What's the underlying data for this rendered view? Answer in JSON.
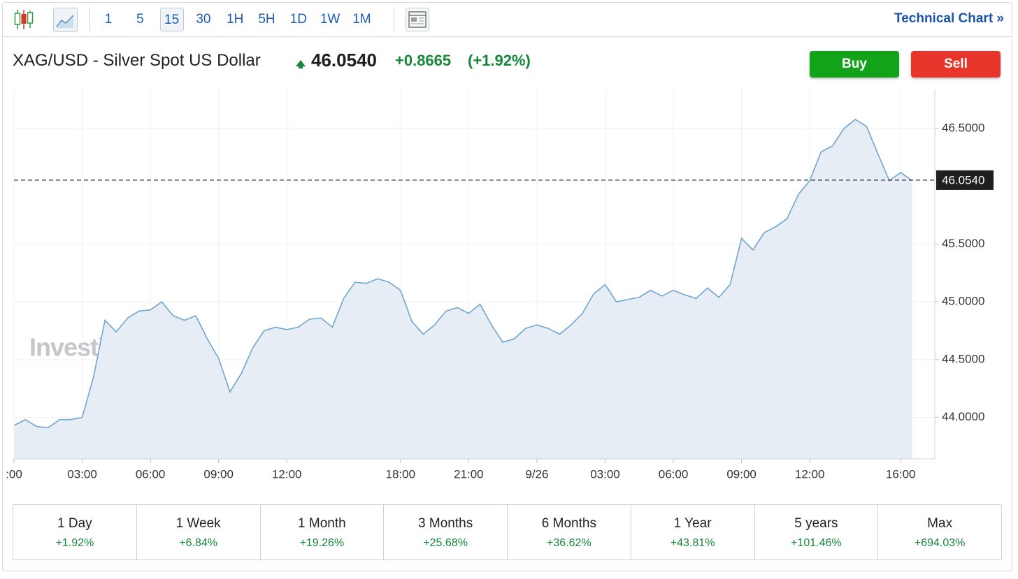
{
  "toolbar": {
    "intervals": [
      {
        "label": "1"
      },
      {
        "label": "5"
      },
      {
        "label": "15",
        "selected": true
      },
      {
        "label": "30"
      },
      {
        "label": "1H"
      },
      {
        "label": "5H"
      },
      {
        "label": "1D"
      },
      {
        "label": "1W"
      },
      {
        "label": "1M"
      }
    ],
    "technical_chart": "Technical Chart »"
  },
  "quote": {
    "name": "XAG/USD - Silver Spot US Dollar",
    "price": "46.0540",
    "change": "+0.8665",
    "change_percent": "(+1.92%)",
    "buy": "Buy",
    "sell": "Sell"
  },
  "chart_data": {
    "type": "area",
    "watermark": "Investing.com",
    "color": "#6fa5d2",
    "fill": "#e6edf5",
    "grid": true,
    "x": [
      0,
      1,
      2,
      3,
      4,
      5,
      6,
      7,
      8,
      9,
      10,
      11,
      12,
      13,
      14,
      15,
      16,
      17,
      18,
      19,
      20,
      21,
      22,
      23,
      24,
      25,
      26,
      27,
      28,
      29,
      30,
      31,
      32,
      33,
      34,
      35,
      36,
      37,
      38,
      39,
      40,
      41,
      42,
      43,
      44,
      45,
      46,
      47,
      48,
      49,
      50,
      51,
      52,
      53,
      54,
      55,
      56,
      57,
      58,
      59,
      60,
      61,
      62,
      63,
      64,
      65,
      66,
      67,
      68,
      69,
      70,
      71,
      72,
      73,
      74,
      75,
      76,
      77,
      78,
      79
    ],
    "values": [
      43.93,
      43.98,
      43.92,
      43.91,
      43.98,
      43.98,
      44.0,
      44.35,
      44.84,
      44.74,
      44.86,
      44.92,
      44.93,
      45.0,
      44.88,
      44.84,
      44.88,
      44.68,
      44.51,
      44.22,
      44.38,
      44.6,
      44.75,
      44.78,
      44.76,
      44.78,
      44.85,
      44.86,
      44.78,
      45.03,
      45.17,
      45.16,
      45.2,
      45.17,
      45.1,
      44.83,
      44.72,
      44.8,
      44.92,
      44.95,
      44.9,
      44.98,
      44.8,
      44.65,
      44.68,
      44.77,
      44.8,
      44.77,
      44.72,
      44.8,
      44.9,
      45.07,
      45.15,
      45.0,
      45.02,
      45.04,
      45.1,
      45.05,
      45.1,
      45.06,
      45.03,
      45.12,
      45.04,
      45.15,
      45.55,
      45.45,
      45.6,
      45.65,
      45.72,
      45.93,
      46.05,
      46.3,
      46.35,
      46.5,
      46.58,
      46.52,
      46.28,
      46.05,
      46.12,
      46.05
    ],
    "xlim": [
      0,
      81
    ],
    "ylim": [
      43.64,
      46.84
    ],
    "xticks": [
      {
        "value": 0,
        "label": ":00"
      },
      {
        "value": 6,
        "label": "03:00"
      },
      {
        "value": 12,
        "label": "06:00"
      },
      {
        "value": 18,
        "label": "09:00"
      },
      {
        "value": 24,
        "label": "12:00"
      },
      {
        "value": 34,
        "label": "18:00"
      },
      {
        "value": 40,
        "label": "21:00"
      },
      {
        "value": 46,
        "label": "9/26"
      },
      {
        "value": 52,
        "label": "03:00"
      },
      {
        "value": 58,
        "label": "06:00"
      },
      {
        "value": 64,
        "label": "09:00"
      },
      {
        "value": 70,
        "label": "12:00"
      },
      {
        "value": 78,
        "label": "16:00"
      }
    ],
    "yticks": [
      {
        "value": 44,
        "label": "44.0000"
      },
      {
        "value": 44.5,
        "label": "44.5000"
      },
      {
        "value": 45,
        "label": "45.0000"
      },
      {
        "value": 45.5,
        "label": "45.5000"
      },
      {
        "value": 46.5,
        "label": "46.5000"
      }
    ],
    "reference_line": {
      "value": 46.054,
      "label": "46.0540"
    }
  },
  "performance": [
    {
      "period": "1 Day",
      "change": "+1.92%"
    },
    {
      "period": "1 Week",
      "change": "+6.84%"
    },
    {
      "period": "1 Month",
      "change": "+19.26%"
    },
    {
      "period": "3 Months",
      "change": "+25.68%"
    },
    {
      "period": "6 Months",
      "change": "+36.62%"
    },
    {
      "period": "1 Year",
      "change": "+43.81%"
    },
    {
      "period": "5 years",
      "change": "+101.46%"
    },
    {
      "period": "Max",
      "change": "+694.03%"
    }
  ]
}
